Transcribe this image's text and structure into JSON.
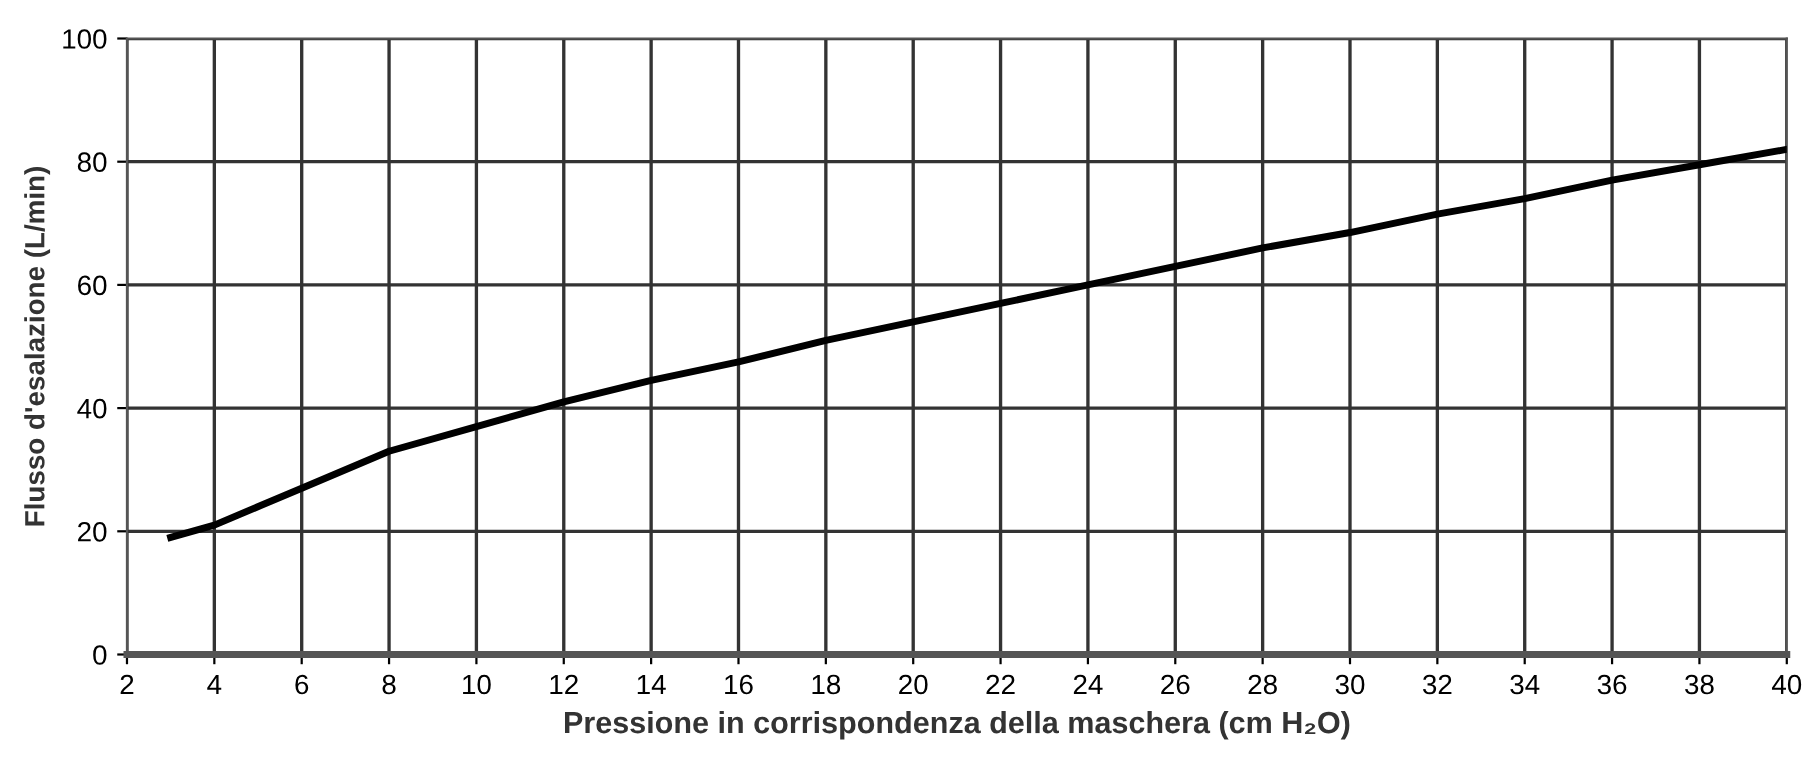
{
  "chart_data": {
    "type": "line",
    "xlabel": "Pressione in corrispondenza della maschera (cm H₂O)",
    "ylabel": "Flusso d'esalazione (L/min)",
    "series": [
      {
        "color": "#000000",
        "x": [
          3,
          4,
          6,
          8,
          10,
          12,
          14,
          16,
          18,
          20,
          22,
          24,
          26,
          28,
          30,
          32,
          34,
          36,
          38,
          40
        ],
        "values": [
          19,
          21,
          27,
          33,
          37,
          41,
          44.5,
          47.5,
          51,
          54,
          57,
          60,
          63,
          66,
          68.5,
          71.5,
          74,
          77,
          79.5,
          82
        ]
      }
    ],
    "xlim": [
      2,
      40
    ],
    "ylim": [
      0,
      100
    ],
    "xticks": [
      2,
      4,
      6,
      8,
      10,
      12,
      14,
      16,
      18,
      20,
      22,
      24,
      26,
      28,
      30,
      32,
      34,
      36,
      38,
      40
    ],
    "yticks": [
      0,
      20,
      40,
      60,
      80,
      100
    ],
    "grid": true,
    "marker": "none",
    "line_style": "solid"
  }
}
